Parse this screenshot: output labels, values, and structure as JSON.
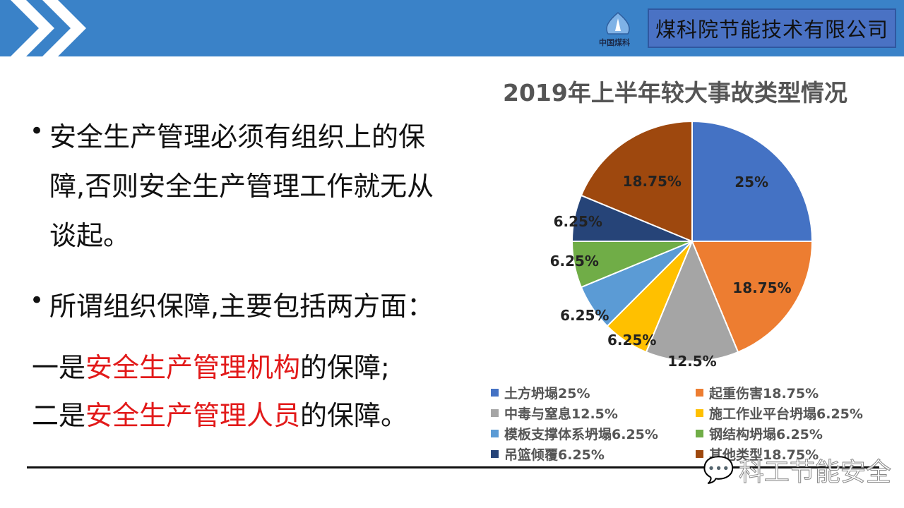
{
  "header": {
    "company": "煤科院节能技术有限公司",
    "logo_text": "中国煤科"
  },
  "body": {
    "bullet1": [
      "安全生产管理必须有组织上的保",
      "障,否则安全生产管理工作就无从",
      "谈起。"
    ],
    "bullet2": "所谓组织保障,主要包括两方面：",
    "line3": {
      "pre": "一是",
      "red": "安全生产管理机构",
      "post": "的保障;"
    },
    "line4": {
      "pre": "二是",
      "red": "安全生产管理人员",
      "post": "的保障。"
    }
  },
  "watermark": "科工节能安全",
  "chart_data": {
    "type": "pie",
    "title": "2019年上半年较大事故类型情况",
    "legend_position": "bottom",
    "slices": [
      {
        "name": "土方坍塌",
        "value": 25,
        "label": "25%",
        "legend": "土方坍塌25%",
        "color": "#4472c4"
      },
      {
        "name": "起重伤害",
        "value": 18.75,
        "label": "18.75%",
        "legend": "起重伤害18.75%",
        "color": "#ed7d31"
      },
      {
        "name": "中毒与窒息",
        "value": 12.5,
        "label": "12.5%",
        "legend": "中毒与窒息12.5%",
        "color": "#a5a5a5"
      },
      {
        "name": "施工作业平台坍塌",
        "value": 6.25,
        "label": "6.25%",
        "legend": "施工作业平台坍塌6.25%",
        "color": "#ffc000"
      },
      {
        "name": "模板支撑体系坍塌",
        "value": 6.25,
        "label": "6.25%",
        "legend": "模板支撑体系坍塌6.25%",
        "color": "#5b9bd5"
      },
      {
        "name": "钢结构坍塌",
        "value": 6.25,
        "label": "6.25%",
        "legend": "钢结构坍塌6.25%",
        "color": "#70ad47"
      },
      {
        "name": "吊篮倾覆",
        "value": 6.25,
        "label": "6.25%",
        "legend": "吊篮倾覆6.25%",
        "color": "#264478"
      },
      {
        "name": "其他类型",
        "value": 18.75,
        "label": "18.75%",
        "legend": "其他类型18.75%",
        "color": "#9e480e"
      }
    ]
  }
}
